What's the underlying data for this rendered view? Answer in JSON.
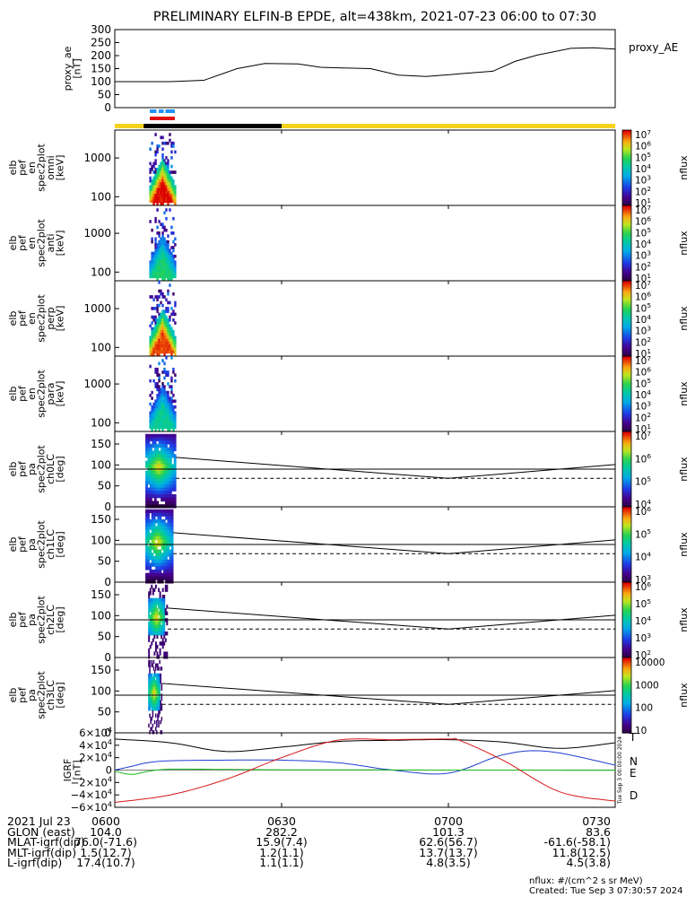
{
  "title": "PRELIMINARY ELFIN-B EPDE, alt=438km, 2021-07-23 06:00 to 07:30",
  "chart_data": [
    {
      "type": "line",
      "panel": "proxy_ae",
      "ylabel": [
        "proxy_ae",
        "[nT]"
      ],
      "legend": "proxy_AE",
      "ylim": [
        0,
        300
      ],
      "yticks": [
        "300",
        "250",
        "200",
        "150",
        "100",
        "50",
        "0"
      ],
      "x_minutes": [
        0,
        10,
        16,
        22,
        27,
        33,
        37,
        42,
        46,
        51,
        56,
        62,
        68,
        72,
        76,
        82,
        86,
        90
      ],
      "values": [
        100,
        100,
        105,
        150,
        170,
        168,
        155,
        152,
        150,
        125,
        120,
        130,
        140,
        178,
        202,
        228,
        230,
        225
      ]
    },
    {
      "type": "heatmap",
      "panel": "pef_en_spec2plot_omni",
      "ylabel": [
        "elb",
        "pef",
        "en",
        "spec2plot",
        "omni",
        "[keV]"
      ],
      "yscale": "log",
      "yticks": [
        "1000",
        "100"
      ],
      "colorbar_label": "nflux",
      "colorbar_ticks": [
        "10^7",
        "10^6",
        "10^5",
        "10^4",
        "10^3",
        "10^2",
        "10^1"
      ]
    },
    {
      "type": "heatmap",
      "panel": "pef_en_spec2plot_anti",
      "ylabel": [
        "elb",
        "pef",
        "en",
        "spec2plot",
        "anti",
        "[keV]"
      ],
      "yscale": "log",
      "yticks": [
        "1000",
        "100"
      ],
      "colorbar_label": "nflux",
      "colorbar_ticks": [
        "10^7",
        "10^6",
        "10^5",
        "10^4",
        "10^3",
        "10^2",
        "10^1"
      ]
    },
    {
      "type": "heatmap",
      "panel": "pef_en_spec2plot_perp",
      "ylabel": [
        "elb",
        "pef",
        "en",
        "spec2plot",
        "perp",
        "[keV]"
      ],
      "yscale": "log",
      "yticks": [
        "1000",
        "100"
      ],
      "colorbar_label": "nflux",
      "colorbar_ticks": [
        "10^7",
        "10^6",
        "10^5",
        "10^4",
        "10^3",
        "10^2",
        "10^1"
      ]
    },
    {
      "type": "heatmap",
      "panel": "pef_en_spec2plot_para",
      "ylabel": [
        "elb",
        "pef",
        "en",
        "spec2plot",
        "para",
        "[keV]"
      ],
      "yscale": "log",
      "yticks": [
        "1000",
        "100"
      ],
      "colorbar_label": "nflux",
      "colorbar_ticks": [
        "10^7",
        "10^6",
        "10^5",
        "10^4",
        "10^3",
        "10^2",
        "10^1"
      ]
    },
    {
      "type": "heatmap",
      "panel": "pef_pa_spec2plot_ch0LC",
      "ylabel": [
        "elb",
        "pef",
        "pa",
        "spec2plot",
        "ch0LC",
        "[deg]"
      ],
      "ylim": [
        0,
        180
      ],
      "yticks": [
        "150",
        "100",
        "50",
        "0"
      ],
      "colorbar_label": "nflux",
      "colorbar_ticks": [
        "10^7",
        "10^6",
        "10^5",
        "10^4"
      ]
    },
    {
      "type": "heatmap",
      "panel": "pef_pa_spec2plot_ch1LC",
      "ylabel": [
        "elb",
        "pef",
        "pa",
        "spec2plot",
        "ch1LC",
        "[deg]"
      ],
      "ylim": [
        0,
        180
      ],
      "yticks": [
        "150",
        "100",
        "50",
        "0"
      ],
      "colorbar_label": "nflux",
      "colorbar_ticks": [
        "10^6",
        "10^5",
        "10^4",
        "10^3"
      ]
    },
    {
      "type": "heatmap",
      "panel": "pef_pa_spec2plot_ch2LC",
      "ylabel": [
        "elb",
        "pef",
        "pa",
        "spec2plot",
        "ch2LC",
        "[deg]"
      ],
      "ylim": [
        0,
        180
      ],
      "yticks": [
        "150",
        "100",
        "50",
        "0"
      ],
      "colorbar_label": "nflux",
      "colorbar_ticks": [
        "10^6",
        "10^5",
        "10^4",
        "10^3",
        "10^2"
      ]
    },
    {
      "type": "heatmap",
      "panel": "pef_pa_spec2plot_ch3LC",
      "ylabel": [
        "elb",
        "pef",
        "pa",
        "spec2plot",
        "ch3LC",
        "[deg]"
      ],
      "ylim": [
        0,
        180
      ],
      "yticks": [
        "150",
        "100",
        "50",
        "0"
      ],
      "colorbar_label": "nflux",
      "colorbar_ticks": [
        "10000",
        "1000",
        "100",
        "10"
      ]
    },
    {
      "type": "line",
      "panel": "IGRF",
      "ylabel": [
        "IGRF",
        "[nT]"
      ],
      "ylim": [
        -60000,
        60000
      ],
      "yticks": [
        "6×10^4",
        "4×10^4",
        "2×10^4",
        "0",
        "−2×10^4",
        "−4×10^4",
        "−6×10^4"
      ],
      "side_note": "Tue Sep  3 00:00:00 2024",
      "series": [
        {
          "name": "T",
          "color": "#000000",
          "x_minutes": [
            0,
            10,
            20,
            30,
            40,
            50,
            60,
            70,
            80,
            90
          ],
          "values": [
            50000,
            44000,
            30000,
            37000,
            46000,
            48000,
            49000,
            45000,
            35000,
            44000
          ]
        },
        {
          "name": "N",
          "color": "#1f3fd0",
          "x_minutes": [
            0,
            3,
            6,
            10,
            20,
            30,
            40,
            50,
            60,
            70,
            78,
            90
          ],
          "values": [
            0,
            6000,
            12000,
            15000,
            16000,
            16000,
            12000,
            0,
            -5000,
            25000,
            30000,
            8000
          ]
        },
        {
          "name": "E",
          "color": "#19b819",
          "x_minutes": [
            0,
            3,
            6,
            10,
            20,
            30,
            40,
            50,
            60,
            70,
            80,
            90
          ],
          "values": [
            -2000,
            -7000,
            -2000,
            1500,
            1000,
            500,
            300,
            200,
            0,
            0,
            -200,
            -500
          ]
        },
        {
          "name": "D",
          "color": "#d81818",
          "x_minutes": [
            0,
            10,
            20,
            30,
            40,
            50,
            60,
            62,
            70,
            80,
            90
          ],
          "values": [
            -52000,
            -40000,
            -15000,
            20000,
            48000,
            49000,
            50000,
            48000,
            15000,
            -35000,
            -50000
          ]
        }
      ]
    }
  ],
  "time_axis": {
    "ticks": [
      "0600",
      "0630",
      "0700",
      "0730"
    ],
    "tick_minutes": [
      0,
      30,
      60,
      90
    ]
  },
  "footer": {
    "rows": [
      {
        "label": "2021 Jul 23",
        "values": [
          "0600",
          "0630",
          "0700",
          "0730"
        ]
      },
      {
        "label": "GLON (east)",
        "values": [
          "104.0",
          "282.2",
          "101.3",
          "83.6"
        ]
      },
      {
        "label": "MLAT-igrf(dip)",
        "values": [
          "76.0(-71.6)",
          "15.9(7.4)",
          "62.6(56.7)",
          "-61.6(-58.1)"
        ]
      },
      {
        "label": "MLT-igrf(dip)",
        "values": [
          "1.5(12.7)",
          "1.2(1.1)",
          "13.7(13.7)",
          "11.8(12.5)"
        ]
      },
      {
        "label": "L-igrf(dip)",
        "values": [
          "17.4(10.7)",
          "1.1(1.1)",
          "4.8(3.5)",
          "4.5(3.8)"
        ]
      }
    ],
    "units_note": "nflux: #/(cm^2 s sr MeV)",
    "created": "Created: Tue Sep  3 07:30:57 2024"
  },
  "colors": {
    "status_yellow": "#f5d21c",
    "status_black": "#000000",
    "marker_blue": "#1e90ff",
    "marker_red": "#e01010"
  }
}
